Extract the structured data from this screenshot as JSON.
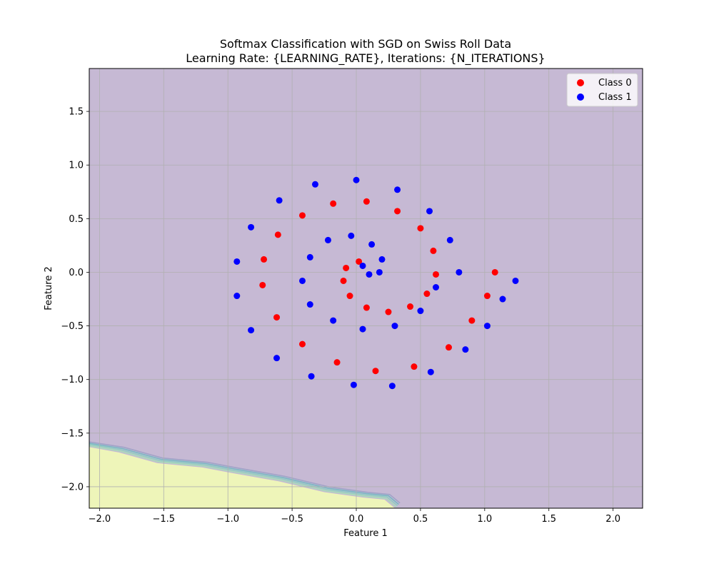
{
  "chart_data": {
    "type": "scatter",
    "title": "Softmax Classification with SGD on Swiss Roll Data",
    "subtitle": "Learning Rate: {LEARNING_RATE}, Iterations: {N_ITERATIONS}",
    "xlabel": "Feature 1",
    "ylabel": "Feature 2",
    "xlim": [
      -2.08,
      2.23
    ],
    "ylim": [
      -2.2,
      1.9
    ],
    "xticks": [
      -2.0,
      -1.5,
      -1.0,
      -0.5,
      0.0,
      0.5,
      1.0,
      1.5,
      2.0
    ],
    "xtick_labels": [
      "−2.0",
      "−1.5",
      "−1.0",
      "−0.5",
      "0.0",
      "0.5",
      "1.0",
      "1.5",
      "2.0"
    ],
    "yticks": [
      -2.0,
      -1.5,
      -1.0,
      -0.5,
      0.0,
      0.5,
      1.0,
      1.5
    ],
    "ytick_labels": [
      "−2.0",
      "−1.5",
      "−1.0",
      "−0.5",
      "0.0",
      "0.5",
      "1.0",
      "1.5"
    ],
    "grid": true,
    "legend_position": "top-right",
    "background_region_color": "#c6b9d4",
    "decision_region_color": "#eef5b9",
    "decision_boundary": [
      [
        -2.08,
        -1.63
      ],
      [
        -1.85,
        -1.68
      ],
      [
        -1.55,
        -1.78
      ],
      [
        -1.2,
        -1.82
      ],
      [
        -0.98,
        -1.87
      ],
      [
        -0.6,
        -1.95
      ],
      [
        -0.25,
        -2.05
      ],
      [
        0.05,
        -2.1
      ],
      [
        0.22,
        -2.12
      ],
      [
        0.3,
        -2.2
      ]
    ],
    "series": [
      {
        "name": "Class 0",
        "color": "#ff0000",
        "points": [
          [
            0.15,
            -0.92
          ],
          [
            -0.15,
            -0.84
          ],
          [
            -0.42,
            -0.67
          ],
          [
            -0.62,
            -0.42
          ],
          [
            -0.73,
            -0.12
          ],
          [
            -0.72,
            0.12
          ],
          [
            -0.61,
            0.35
          ],
          [
            -0.42,
            0.53
          ],
          [
            -0.18,
            0.64
          ],
          [
            0.08,
            0.66
          ],
          [
            0.32,
            0.57
          ],
          [
            0.5,
            0.41
          ],
          [
            0.6,
            0.2
          ],
          [
            0.62,
            -0.02
          ],
          [
            0.55,
            -0.2
          ],
          [
            0.42,
            -0.32
          ],
          [
            0.25,
            -0.37
          ],
          [
            0.08,
            -0.33
          ],
          [
            -0.05,
            -0.22
          ],
          [
            -0.1,
            -0.08
          ],
          [
            -0.08,
            0.04
          ],
          [
            0.02,
            0.1
          ],
          [
            0.45,
            -0.88
          ],
          [
            0.72,
            -0.7
          ],
          [
            0.9,
            -0.45
          ],
          [
            1.02,
            -0.22
          ],
          [
            1.08,
            0.0
          ]
        ]
      },
      {
        "name": "Class 1",
        "color": "#0000ff",
        "points": [
          [
            0.05,
            0.06
          ],
          [
            0.1,
            -0.02
          ],
          [
            0.18,
            0.0
          ],
          [
            0.2,
            0.12
          ],
          [
            0.12,
            0.26
          ],
          [
            -0.04,
            0.34
          ],
          [
            -0.22,
            0.3
          ],
          [
            -0.36,
            0.14
          ],
          [
            -0.42,
            -0.08
          ],
          [
            -0.36,
            -0.3
          ],
          [
            -0.18,
            -0.45
          ],
          [
            0.05,
            -0.53
          ],
          [
            0.3,
            -0.5
          ],
          [
            0.5,
            -0.36
          ],
          [
            0.62,
            -0.14
          ],
          [
            -0.02,
            -1.05
          ],
          [
            -0.35,
            -0.97
          ],
          [
            -0.62,
            -0.8
          ],
          [
            -0.82,
            -0.54
          ],
          [
            -0.93,
            -0.22
          ],
          [
            -0.93,
            0.1
          ],
          [
            -0.82,
            0.42
          ],
          [
            -0.6,
            0.67
          ],
          [
            -0.32,
            0.82
          ],
          [
            0.0,
            0.86
          ],
          [
            0.32,
            0.77
          ],
          [
            0.57,
            0.57
          ],
          [
            0.73,
            0.3
          ],
          [
            0.8,
            0.0
          ],
          [
            0.28,
            -1.06
          ],
          [
            0.58,
            -0.93
          ],
          [
            0.85,
            -0.72
          ],
          [
            1.02,
            -0.5
          ],
          [
            1.14,
            -0.25
          ],
          [
            1.24,
            -0.08
          ]
        ]
      }
    ]
  }
}
